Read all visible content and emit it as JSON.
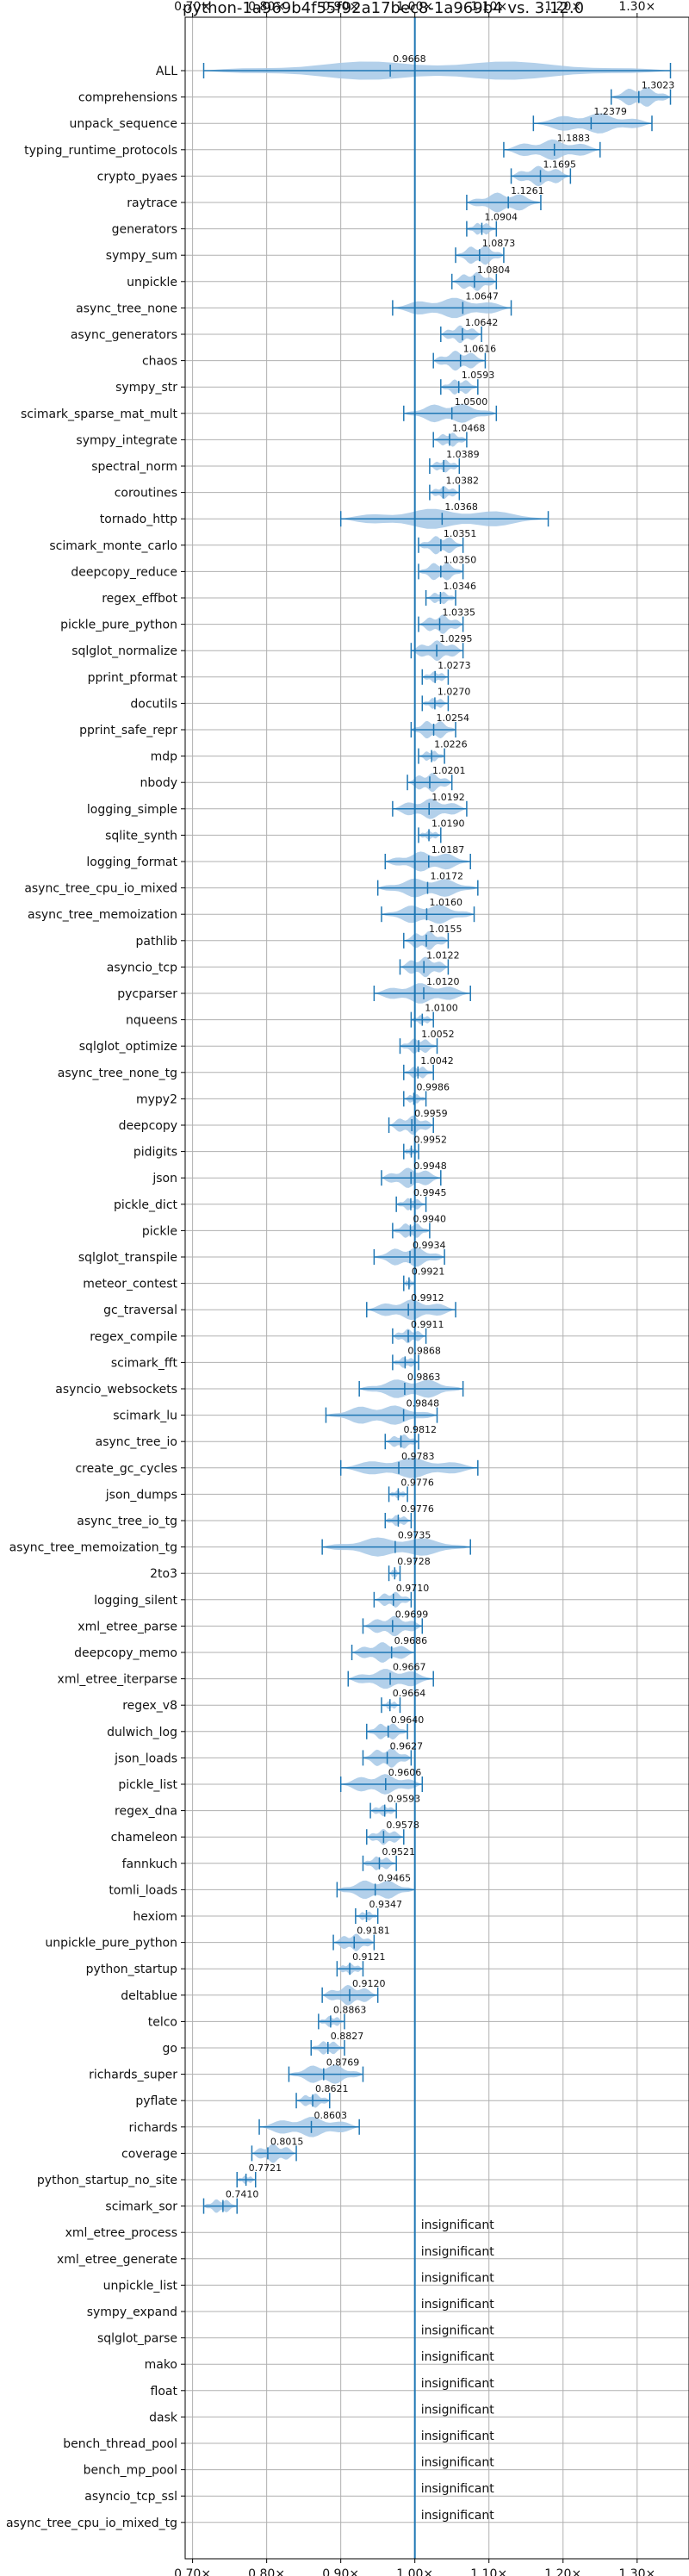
{
  "chart_data": {
    "type": "violin",
    "title": "python-1a969b4f55f92a17bec8-1a969b4 vs. 3.12.0",
    "xlim": [
      0.69,
      1.37
    ],
    "xticks": [
      0.7,
      0.8,
      0.9,
      1.0,
      1.1,
      1.2,
      1.3
    ],
    "xtick_labels": [
      "0.70×",
      "0.80×",
      "0.90×",
      "1.00×",
      "1.10×",
      "1.20×",
      "1.30×"
    ],
    "reference_line": 1.0,
    "grid": true,
    "colors": {
      "violin": "#a6c8e6",
      "line": "#1f77b4",
      "grid": "#b0b0b0"
    },
    "insignificant_label": "insignificant",
    "benchmarks": [
      {
        "name": "ALL",
        "mean": 0.9668,
        "label": "0.9668",
        "min": 0.715,
        "max": 1.345
      },
      {
        "name": "comprehensions",
        "mean": 1.3023,
        "label": "1.3023",
        "min": 1.265,
        "max": 1.345
      },
      {
        "name": "unpack_sequence",
        "mean": 1.2379,
        "label": "1.2379",
        "min": 1.16,
        "max": 1.32
      },
      {
        "name": "typing_runtime_protocols",
        "mean": 1.1883,
        "label": "1.1883",
        "min": 1.12,
        "max": 1.25
      },
      {
        "name": "crypto_pyaes",
        "mean": 1.1695,
        "label": "1.1695",
        "min": 1.13,
        "max": 1.21
      },
      {
        "name": "raytrace",
        "mean": 1.1261,
        "label": "1.1261",
        "min": 1.07,
        "max": 1.17
      },
      {
        "name": "generators",
        "mean": 1.0904,
        "label": "1.0904",
        "min": 1.07,
        "max": 1.11
      },
      {
        "name": "sympy_sum",
        "mean": 1.0873,
        "label": "1.0873",
        "min": 1.055,
        "max": 1.12
      },
      {
        "name": "unpickle",
        "mean": 1.0804,
        "label": "1.0804",
        "min": 1.05,
        "max": 1.11
      },
      {
        "name": "async_tree_none",
        "mean": 1.0647,
        "label": "1.0647",
        "min": 0.97,
        "max": 1.13
      },
      {
        "name": "async_generators",
        "mean": 1.0642,
        "label": "1.0642",
        "min": 1.035,
        "max": 1.09
      },
      {
        "name": "chaos",
        "mean": 1.0616,
        "label": "1.0616",
        "min": 1.025,
        "max": 1.095
      },
      {
        "name": "sympy_str",
        "mean": 1.0593,
        "label": "1.0593",
        "min": 1.035,
        "max": 1.085
      },
      {
        "name": "scimark_sparse_mat_mult",
        "mean": 1.05,
        "label": "1.0500",
        "min": 0.985,
        "max": 1.11
      },
      {
        "name": "sympy_integrate",
        "mean": 1.0468,
        "label": "1.0468",
        "min": 1.025,
        "max": 1.07
      },
      {
        "name": "spectral_norm",
        "mean": 1.0389,
        "label": "1.0389",
        "min": 1.02,
        "max": 1.06
      },
      {
        "name": "coroutines",
        "mean": 1.0382,
        "label": "1.0382",
        "min": 1.02,
        "max": 1.06
      },
      {
        "name": "tornado_http",
        "mean": 1.0368,
        "label": "1.0368",
        "min": 0.9,
        "max": 1.18
      },
      {
        "name": "scimark_monte_carlo",
        "mean": 1.0351,
        "label": "1.0351",
        "min": 1.005,
        "max": 1.065
      },
      {
        "name": "deepcopy_reduce",
        "mean": 1.035,
        "label": "1.0350",
        "min": 1.005,
        "max": 1.065
      },
      {
        "name": "regex_effbot",
        "mean": 1.0346,
        "label": "1.0346",
        "min": 1.015,
        "max": 1.055
      },
      {
        "name": "pickle_pure_python",
        "mean": 1.0335,
        "label": "1.0335",
        "min": 1.005,
        "max": 1.065
      },
      {
        "name": "sqlglot_normalize",
        "mean": 1.0295,
        "label": "1.0295",
        "min": 0.995,
        "max": 1.065
      },
      {
        "name": "pprint_pformat",
        "mean": 1.0273,
        "label": "1.0273",
        "min": 1.01,
        "max": 1.045
      },
      {
        "name": "docutils",
        "mean": 1.027,
        "label": "1.0270",
        "min": 1.01,
        "max": 1.045
      },
      {
        "name": "pprint_safe_repr",
        "mean": 1.0254,
        "label": "1.0254",
        "min": 0.995,
        "max": 1.055
      },
      {
        "name": "mdp",
        "mean": 1.0226,
        "label": "1.0226",
        "min": 1.005,
        "max": 1.04
      },
      {
        "name": "nbody",
        "mean": 1.0201,
        "label": "1.0201",
        "min": 0.99,
        "max": 1.05
      },
      {
        "name": "logging_simple",
        "mean": 1.0192,
        "label": "1.0192",
        "min": 0.97,
        "max": 1.07
      },
      {
        "name": "sqlite_synth",
        "mean": 1.019,
        "label": "1.0190",
        "min": 1.005,
        "max": 1.035
      },
      {
        "name": "logging_format",
        "mean": 1.0187,
        "label": "1.0187",
        "min": 0.96,
        "max": 1.075
      },
      {
        "name": "async_tree_cpu_io_mixed",
        "mean": 1.0172,
        "label": "1.0172",
        "min": 0.95,
        "max": 1.085
      },
      {
        "name": "async_tree_memoization",
        "mean": 1.016,
        "label": "1.0160",
        "min": 0.955,
        "max": 1.08
      },
      {
        "name": "pathlib",
        "mean": 1.0155,
        "label": "1.0155",
        "min": 0.985,
        "max": 1.045
      },
      {
        "name": "asyncio_tcp",
        "mean": 1.0122,
        "label": "1.0122",
        "min": 0.98,
        "max": 1.045
      },
      {
        "name": "pycparser",
        "mean": 1.012,
        "label": "1.0120",
        "min": 0.945,
        "max": 1.075
      },
      {
        "name": "nqueens",
        "mean": 1.01,
        "label": "1.0100",
        "min": 0.995,
        "max": 1.025
      },
      {
        "name": "sqlglot_optimize",
        "mean": 1.0052,
        "label": "1.0052",
        "min": 0.98,
        "max": 1.03
      },
      {
        "name": "async_tree_none_tg",
        "mean": 1.0042,
        "label": "1.0042",
        "min": 0.985,
        "max": 1.025
      },
      {
        "name": "mypy2",
        "mean": 0.9986,
        "label": "0.9986",
        "min": 0.985,
        "max": 1.015
      },
      {
        "name": "deepcopy",
        "mean": 0.9959,
        "label": "0.9959",
        "min": 0.965,
        "max": 1.025
      },
      {
        "name": "pidigits",
        "mean": 0.9952,
        "label": "0.9952",
        "min": 0.985,
        "max": 1.005
      },
      {
        "name": "json",
        "mean": 0.9948,
        "label": "0.9948",
        "min": 0.955,
        "max": 1.035
      },
      {
        "name": "pickle_dict",
        "mean": 0.9945,
        "label": "0.9945",
        "min": 0.975,
        "max": 1.015
      },
      {
        "name": "pickle",
        "mean": 0.994,
        "label": "0.9940",
        "min": 0.97,
        "max": 1.02
      },
      {
        "name": "sqlglot_transpile",
        "mean": 0.9934,
        "label": "0.9934",
        "min": 0.945,
        "max": 1.04
      },
      {
        "name": "meteor_contest",
        "mean": 0.9921,
        "label": "0.9921",
        "min": 0.985,
        "max": 1.0
      },
      {
        "name": "gc_traversal",
        "mean": 0.9912,
        "label": "0.9912",
        "min": 0.935,
        "max": 1.055
      },
      {
        "name": "regex_compile",
        "mean": 0.9911,
        "label": "0.9911",
        "min": 0.97,
        "max": 1.015
      },
      {
        "name": "scimark_fft",
        "mean": 0.9868,
        "label": "0.9868",
        "min": 0.97,
        "max": 1.005
      },
      {
        "name": "asyncio_websockets",
        "mean": 0.9863,
        "label": "0.9863",
        "min": 0.925,
        "max": 1.065
      },
      {
        "name": "scimark_lu",
        "mean": 0.9848,
        "label": "0.9848",
        "min": 0.88,
        "max": 1.03
      },
      {
        "name": "async_tree_io",
        "mean": 0.9812,
        "label": "0.9812",
        "min": 0.96,
        "max": 1.005
      },
      {
        "name": "create_gc_cycles",
        "mean": 0.9783,
        "label": "0.9783",
        "min": 0.9,
        "max": 1.085
      },
      {
        "name": "json_dumps",
        "mean": 0.9776,
        "label": "0.9776",
        "min": 0.965,
        "max": 0.99
      },
      {
        "name": "async_tree_io_tg",
        "mean": 0.9776,
        "label": "0.9776",
        "min": 0.96,
        "max": 0.995
      },
      {
        "name": "async_tree_memoization_tg",
        "mean": 0.9735,
        "label": "0.9735",
        "min": 0.875,
        "max": 1.075
      },
      {
        "name": "2to3",
        "mean": 0.9728,
        "label": "0.9728",
        "min": 0.965,
        "max": 0.98
      },
      {
        "name": "logging_silent",
        "mean": 0.971,
        "label": "0.9710",
        "min": 0.945,
        "max": 0.995
      },
      {
        "name": "xml_etree_parse",
        "mean": 0.9699,
        "label": "0.9699",
        "min": 0.93,
        "max": 1.01
      },
      {
        "name": "deepcopy_memo",
        "mean": 0.9686,
        "label": "0.9686",
        "min": 0.915,
        "max": 1.0
      },
      {
        "name": "xml_etree_iterparse",
        "mean": 0.9667,
        "label": "0.9667",
        "min": 0.91,
        "max": 1.025
      },
      {
        "name": "regex_v8",
        "mean": 0.9664,
        "label": "0.9664",
        "min": 0.955,
        "max": 0.98
      },
      {
        "name": "dulwich_log",
        "mean": 0.964,
        "label": "0.9640",
        "min": 0.935,
        "max": 0.99
      },
      {
        "name": "json_loads",
        "mean": 0.9627,
        "label": "0.9627",
        "min": 0.93,
        "max": 0.995
      },
      {
        "name": "pickle_list",
        "mean": 0.9606,
        "label": "0.9606",
        "min": 0.9,
        "max": 1.01
      },
      {
        "name": "regex_dna",
        "mean": 0.9593,
        "label": "0.9593",
        "min": 0.94,
        "max": 0.975
      },
      {
        "name": "chameleon",
        "mean": 0.9578,
        "label": "0.9578",
        "min": 0.935,
        "max": 0.985
      },
      {
        "name": "fannkuch",
        "mean": 0.9521,
        "label": "0.9521",
        "min": 0.93,
        "max": 0.975
      },
      {
        "name": "tomli_loads",
        "mean": 0.9465,
        "label": "0.9465",
        "min": 0.895,
        "max": 1.0
      },
      {
        "name": "hexiom",
        "mean": 0.9347,
        "label": "0.9347",
        "min": 0.92,
        "max": 0.95
      },
      {
        "name": "unpickle_pure_python",
        "mean": 0.9181,
        "label": "0.9181",
        "min": 0.89,
        "max": 0.945
      },
      {
        "name": "python_startup",
        "mean": 0.9121,
        "label": "0.9121",
        "min": 0.895,
        "max": 0.93
      },
      {
        "name": "deltablue",
        "mean": 0.912,
        "label": "0.9120",
        "min": 0.875,
        "max": 0.95
      },
      {
        "name": "telco",
        "mean": 0.8863,
        "label": "0.8863",
        "min": 0.87,
        "max": 0.905
      },
      {
        "name": "go",
        "mean": 0.8827,
        "label": "0.8827",
        "min": 0.86,
        "max": 0.905
      },
      {
        "name": "richards_super",
        "mean": 0.8769,
        "label": "0.8769",
        "min": 0.83,
        "max": 0.93
      },
      {
        "name": "pyflate",
        "mean": 0.8621,
        "label": "0.8621",
        "min": 0.84,
        "max": 0.885
      },
      {
        "name": "richards",
        "mean": 0.8603,
        "label": "0.8603",
        "min": 0.79,
        "max": 0.925
      },
      {
        "name": "coverage",
        "mean": 0.8015,
        "label": "0.8015",
        "min": 0.78,
        "max": 0.84
      },
      {
        "name": "python_startup_no_site",
        "mean": 0.7721,
        "label": "0.7721",
        "min": 0.76,
        "max": 0.785
      },
      {
        "name": "scimark_sor",
        "mean": 0.741,
        "label": "0.7410",
        "min": 0.715,
        "max": 0.76
      },
      {
        "name": "xml_etree_process",
        "insignificant": true
      },
      {
        "name": "xml_etree_generate",
        "insignificant": true
      },
      {
        "name": "unpickle_list",
        "insignificant": true
      },
      {
        "name": "sympy_expand",
        "insignificant": true
      },
      {
        "name": "sqlglot_parse",
        "insignificant": true
      },
      {
        "name": "mako",
        "insignificant": true
      },
      {
        "name": "float",
        "insignificant": true
      },
      {
        "name": "dask",
        "insignificant": true
      },
      {
        "name": "bench_thread_pool",
        "insignificant": true
      },
      {
        "name": "bench_mp_pool",
        "insignificant": true
      },
      {
        "name": "asyncio_tcp_ssl",
        "insignificant": true
      },
      {
        "name": "async_tree_cpu_io_mixed_tg",
        "insignificant": true
      }
    ]
  }
}
